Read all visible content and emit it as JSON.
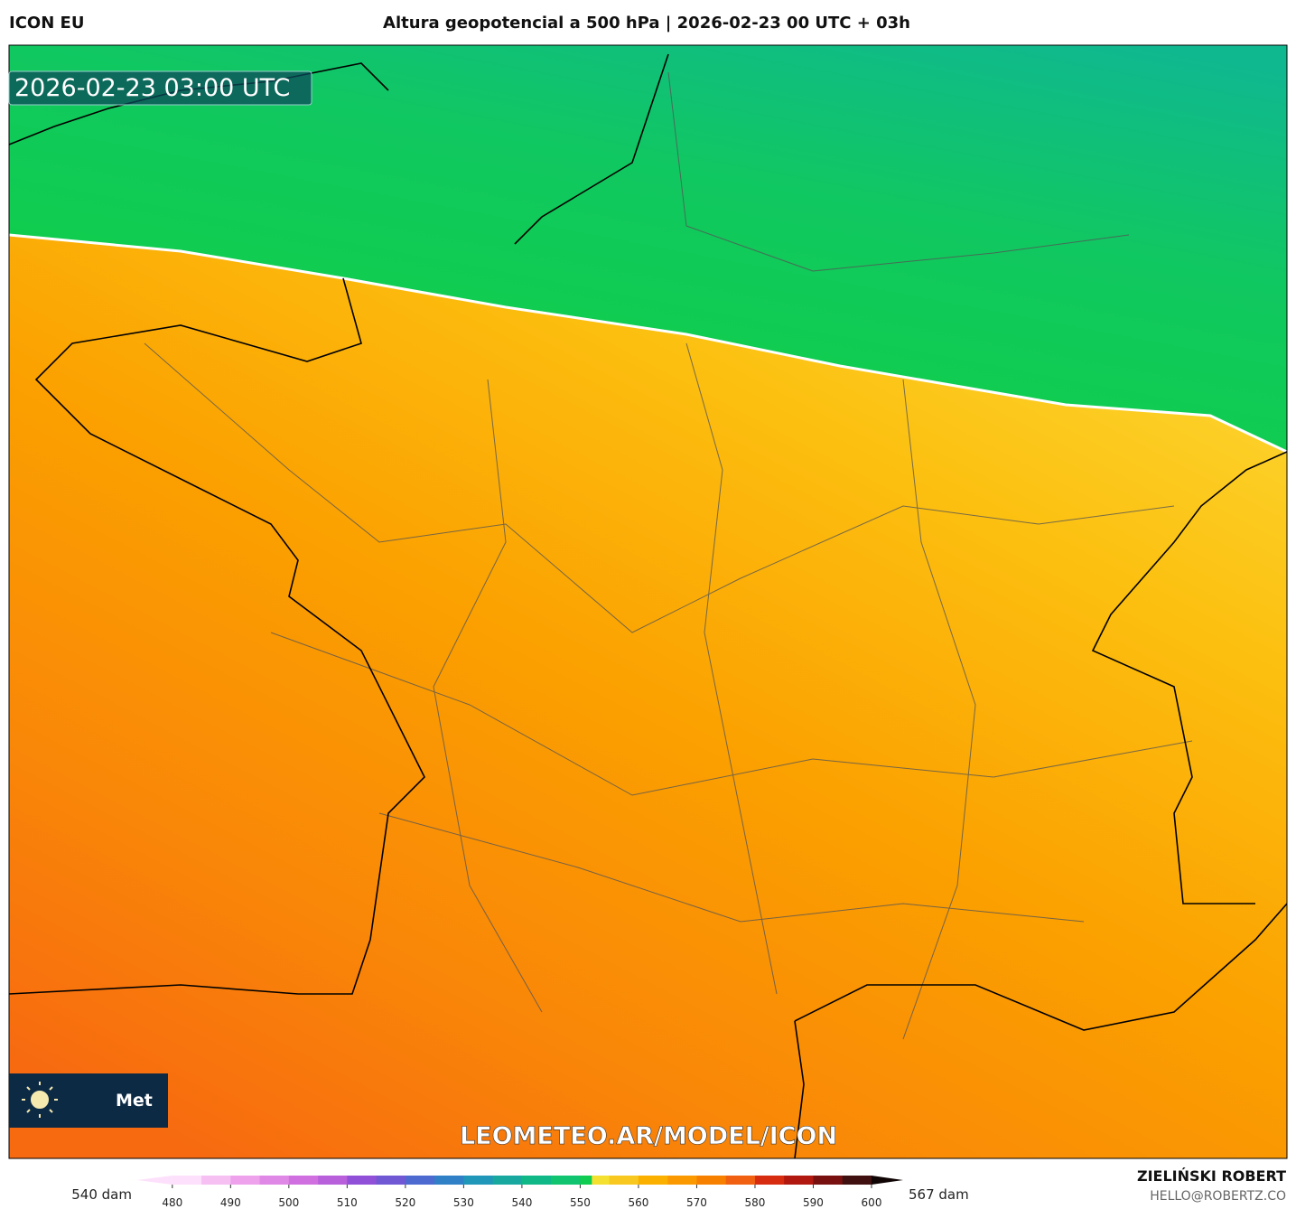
{
  "header": {
    "model": "ICON EU",
    "title": "Altura geopotencial a 500 hPa | 2026-02-23 00 UTC + 03h",
    "credit_name": "ZIELIŃSKI ROBERT",
    "credit_email": "HELLO@ROBERTZ.CO"
  },
  "map": {
    "valid_time": "2026-02-23 03:00 UTC",
    "watermark": "LEOMETEO.AR/MODEL/ICON",
    "logo_text": "Met"
  },
  "colorbar": {
    "min_label": "540 dam",
    "max_label": "567 dam",
    "lim": [
      476,
      600
    ],
    "ticks": [
      480,
      490,
      500,
      510,
      520,
      530,
      540,
      550,
      560,
      570,
      580,
      590,
      600
    ],
    "stops": [
      {
        "value": 480,
        "color": "#fde0fb"
      },
      {
        "value": 485,
        "color": "#f6c0f2"
      },
      {
        "value": 490,
        "color": "#eea2ec"
      },
      {
        "value": 495,
        "color": "#e088e6"
      },
      {
        "value": 500,
        "color": "#d070e0"
      },
      {
        "value": 505,
        "color": "#b860dc"
      },
      {
        "value": 510,
        "color": "#9050d8"
      },
      {
        "value": 515,
        "color": "#7058d4"
      },
      {
        "value": 520,
        "color": "#4c6ad0"
      },
      {
        "value": 525,
        "color": "#3080c8"
      },
      {
        "value": 530,
        "color": "#2096b8"
      },
      {
        "value": 535,
        "color": "#18a8a0"
      },
      {
        "value": 540,
        "color": "#10b888"
      },
      {
        "value": 545,
        "color": "#10c470"
      },
      {
        "value": 550,
        "color": "#10cc50"
      },
      {
        "value": 552,
        "color": "#f4e030"
      },
      {
        "value": 555,
        "color": "#f8c820"
      },
      {
        "value": 560,
        "color": "#fbb000"
      },
      {
        "value": 565,
        "color": "#fa9a00"
      },
      {
        "value": 570,
        "color": "#f88000"
      },
      {
        "value": 575,
        "color": "#f06010"
      },
      {
        "value": 580,
        "color": "#d82c10"
      },
      {
        "value": 585,
        "color": "#b01810"
      },
      {
        "value": 590,
        "color": "#781010"
      },
      {
        "value": 595,
        "color": "#401010"
      },
      {
        "value": 600,
        "color": "#100404"
      }
    ]
  }
}
